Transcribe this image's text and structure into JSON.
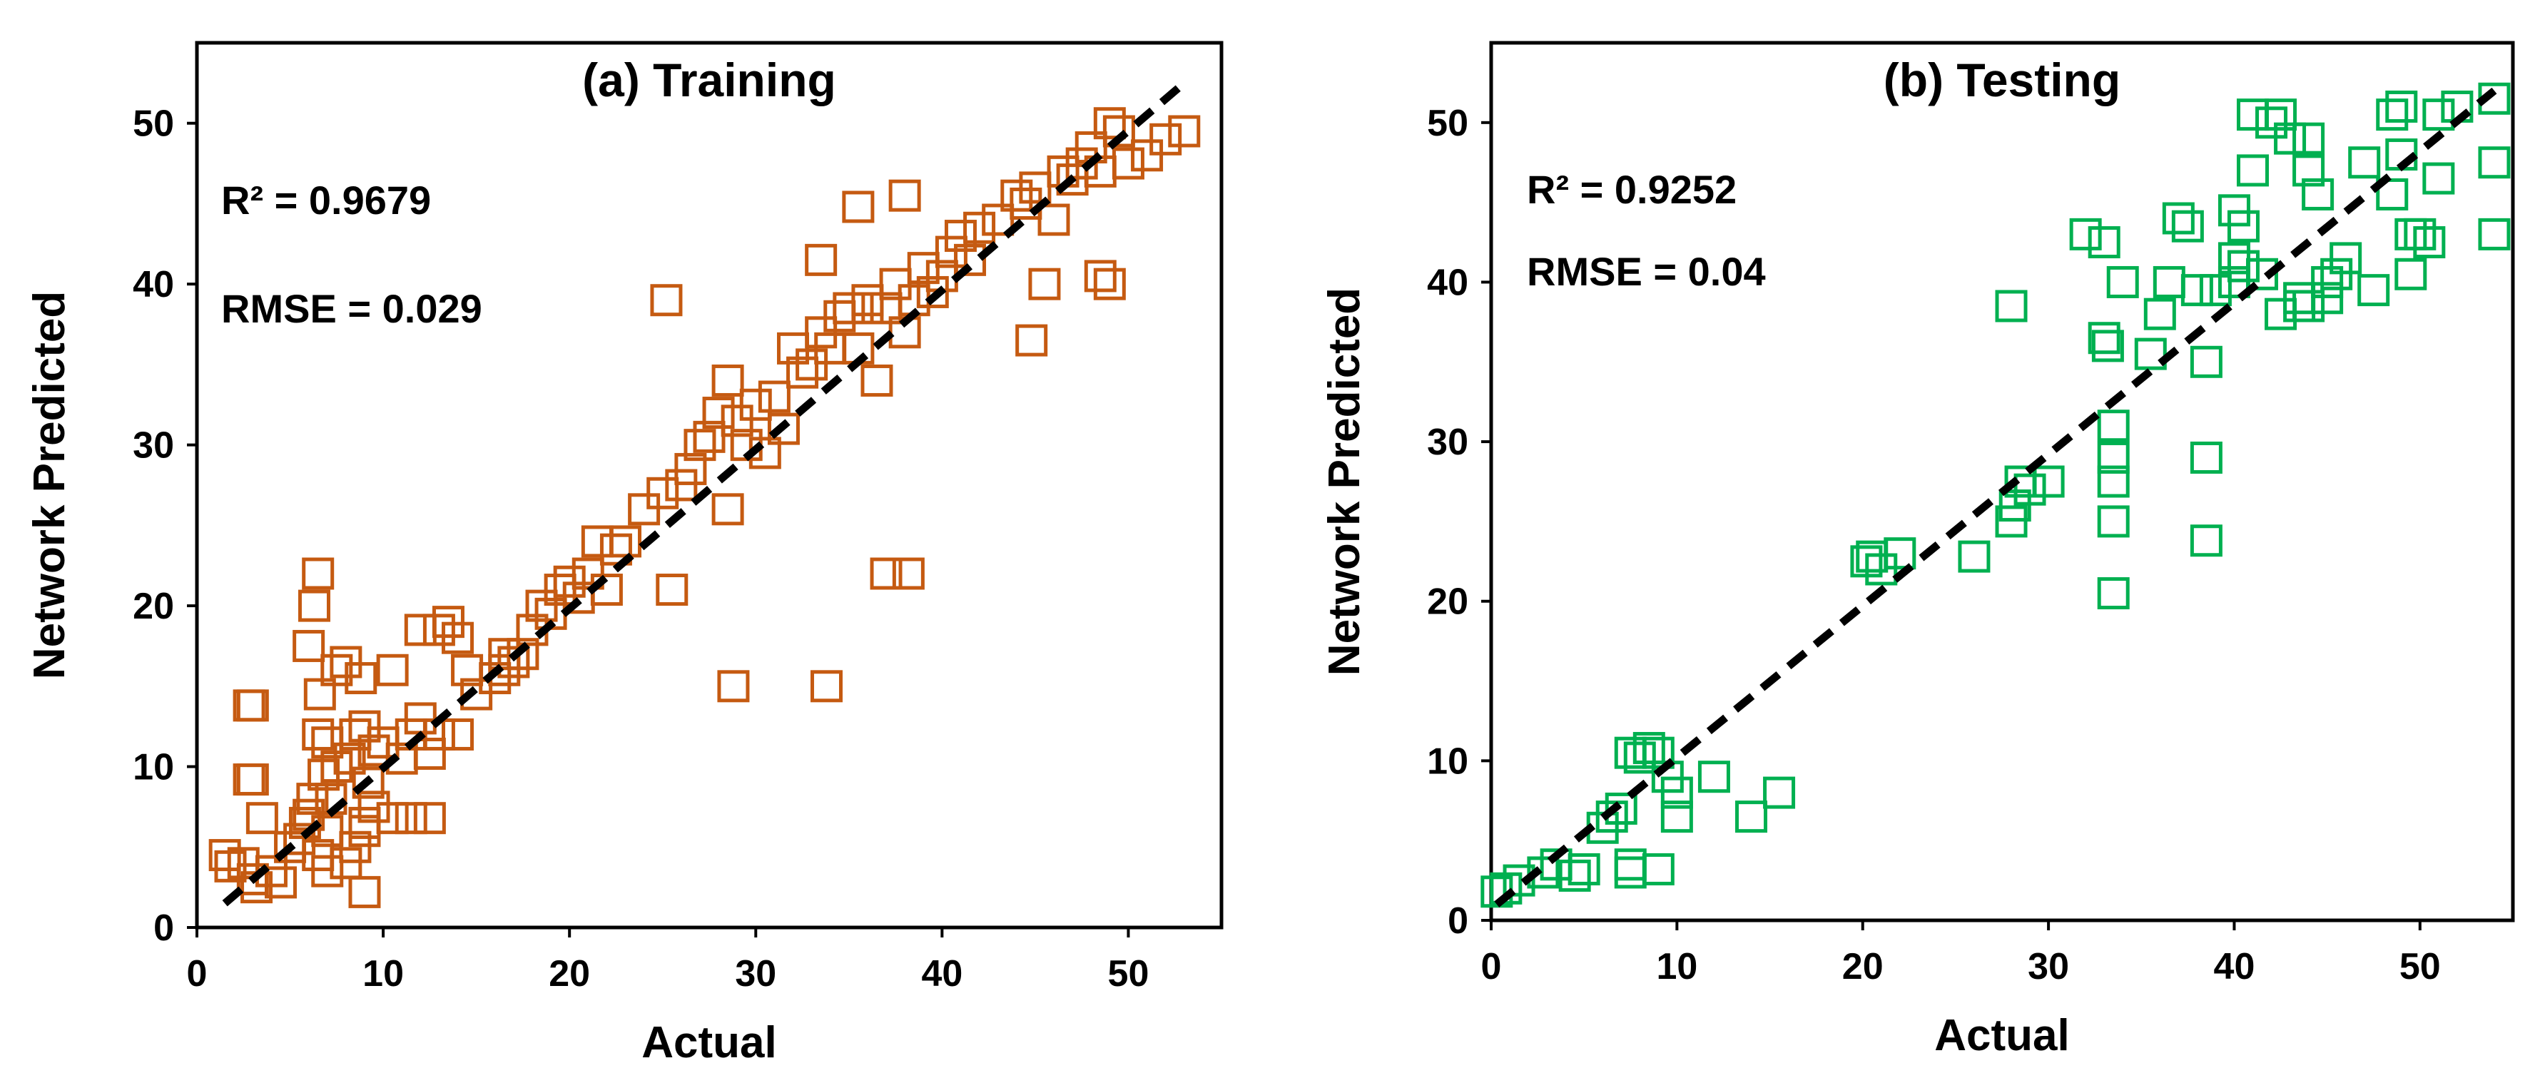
{
  "chart_data": [
    {
      "type": "scatter",
      "title": "(a) Training",
      "xlabel": "Actual",
      "ylabel": "Network Predicted",
      "xlim": [
        0,
        55
      ],
      "ylim": [
        0,
        55
      ],
      "xticks": [
        0,
        10,
        20,
        30,
        40,
        50
      ],
      "yticks": [
        0,
        10,
        20,
        30,
        40,
        50
      ],
      "annotations": [
        "R² = 0.9679",
        "RMSE = 0.029"
      ],
      "marker": "hollow-square",
      "color": "#c55a11",
      "fit_line": {
        "style": "dashed",
        "color": "#000000",
        "x": [
          1.5,
          53
        ],
        "y": [
          1.5,
          52.5
        ]
      },
      "series": [
        {
          "name": "Training",
          "x": [
            1.5,
            1.8,
            2.5,
            2.8,
            3.0,
            3.0,
            3.2,
            3.5,
            4.0,
            4.5,
            5.0,
            5.5,
            5.8,
            6.0,
            6.2,
            6.5,
            6.5,
            6.8,
            7.0,
            7.0,
            7.2,
            7.5,
            8.0,
            8.0,
            8.5,
            8.8,
            9.0,
            9.0,
            9.2,
            9.5,
            6.0,
            6.3,
            6.6,
            7.5,
            8.2,
            9.0,
            9.5,
            10.0,
            10.5,
            11.0,
            11.5,
            12.0,
            12.5,
            13.0,
            13.5,
            14.0,
            14.5,
            15.0,
            16.0,
            16.5,
            17.0,
            17.5,
            18.0,
            18.5,
            19.0,
            19.5,
            20.0,
            20.5,
            21.0,
            21.5,
            22.0,
            22.5,
            23.0,
            24.0,
            25.0,
            25.5,
            26.0,
            26.5,
            27.0,
            27.5,
            28.0,
            28.5,
            29.0,
            29.5,
            30.0,
            30.5,
            31.0,
            32.0,
            32.5,
            33.0,
            33.5,
            34.0,
            34.5,
            35.0,
            35.5,
            36.0,
            36.5,
            37.0,
            37.5,
            38.0,
            38.5,
            39.0,
            39.5,
            40.0,
            40.5,
            41.0,
            41.5,
            42.0,
            43.0,
            44.0,
            44.5,
            45.0,
            45.5,
            46.0,
            46.5,
            47.0,
            47.5,
            48.0,
            48.5,
            49.0,
            49.5,
            50.0,
            51.0,
            52.0,
            53.0,
            25.2,
            28.8,
            33.8,
            37.0,
            38.2,
            13.0,
            35.5,
            38.0,
            33.5,
            44.8,
            48.5,
            49.0,
            6.5,
            7.0,
            8.5,
            9.0,
            10.5,
            11.5,
            12.5,
            3.0,
            2.8,
            12.0,
            14.0,
            16.5,
            28.5,
            31.5,
            36.0
          ],
          "y": [
            4.5,
            3.8,
            4.0,
            13.8,
            9.2,
            3.0,
            2.5,
            6.8,
            3.5,
            2.8,
            5.0,
            5.5,
            6.5,
            7.0,
            8.0,
            12.0,
            22.0,
            9.5,
            11.5,
            6.0,
            8.0,
            16.0,
            4.0,
            16.5,
            12.0,
            15.5,
            2.2,
            6.5,
            9.0,
            11.0,
            17.5,
            20.0,
            14.5,
            10.0,
            10.5,
            12.5,
            7.5,
            11.5,
            16.0,
            10.5,
            12.0,
            13.0,
            10.8,
            12.0,
            19.0,
            12.0,
            16.0,
            14.5,
            15.5,
            17.0,
            16.5,
            17.0,
            18.5,
            20.0,
            19.5,
            21.0,
            21.5,
            20.5,
            22.0,
            24.0,
            21.0,
            23.5,
            24.0,
            26.0,
            27.0,
            21.0,
            27.5,
            28.5,
            30.0,
            30.5,
            32.0,
            26.0,
            31.5,
            30.0,
            32.5,
            29.5,
            33.0,
            36.0,
            34.5,
            35.0,
            37.0,
            36.0,
            38.0,
            38.5,
            36.0,
            39.0,
            34.0,
            38.5,
            40.0,
            37.0,
            39.0,
            41.0,
            39.5,
            40.5,
            42.0,
            43.0,
            41.5,
            43.5,
            44.0,
            45.5,
            45.0,
            46.0,
            40.0,
            44.0,
            47.0,
            46.5,
            47.5,
            48.5,
            47.0,
            50.0,
            49.5,
            47.5,
            48.0,
            49.0,
            49.5,
            39.0,
            15.0,
            15.0,
            22.0,
            22.0,
            18.5,
            44.8,
            45.5,
            41.5,
            36.5,
            40.5,
            40.0,
            4.5,
            3.5,
            5.0,
            6.0,
            6.8,
            6.8,
            6.8,
            13.8,
            9.2,
            18.5,
            18.0,
            16.0,
            34.0,
            31.0,
            38.5
          ]
        }
      ]
    },
    {
      "type": "scatter",
      "title": "(b) Testing",
      "xlabel": "Actual",
      "ylabel": "Network Predicted",
      "xlim": [
        0,
        55
      ],
      "ylim": [
        0,
        55
      ],
      "xticks": [
        0,
        10,
        20,
        30,
        40,
        50
      ],
      "yticks": [
        0,
        10,
        20,
        30,
        40,
        50
      ],
      "annotations": [
        "R² = 0.9252",
        "RMSE = 0.04"
      ],
      "marker": "hollow-square",
      "color": "#00b050",
      "fit_line": {
        "style": "dashed",
        "color": "#000000",
        "x": [
          0.3,
          54
        ],
        "y": [
          1.0,
          52
        ]
      },
      "series": [
        {
          "name": "Testing",
          "x": [
            0.3,
            0.8,
            1.5,
            2.8,
            3.5,
            4.5,
            5.0,
            6.0,
            6.5,
            7.0,
            7.5,
            7.5,
            8.0,
            8.5,
            9.0,
            9.5,
            10.0,
            7.5,
            9.0,
            10.0,
            12.0,
            14.0,
            15.5,
            20.2,
            20.5,
            21.0,
            22.0,
            26.0,
            28.0,
            28.2,
            28.5,
            29.0,
            30.0,
            32.0,
            33.0,
            33.2,
            33.5,
            33.5,
            33.5,
            33.5,
            33.5,
            34.0,
            35.5,
            36.0,
            36.5,
            37.0,
            37.5,
            38.0,
            38.5,
            38.5,
            38.5,
            39.0,
            40.0,
            40.0,
            40.5,
            41.0,
            41.0,
            41.5,
            42.0,
            42.5,
            43.0,
            43.5,
            44.0,
            44.0,
            44.5,
            45.0,
            45.5,
            46.0,
            47.5,
            48.5,
            48.5,
            49.0,
            49.0,
            49.5,
            49.5,
            50.0,
            50.5,
            51.0,
            51.0,
            52.0,
            54.0,
            54.0,
            54.0,
            40.0,
            40.5,
            42.5,
            43.5,
            44.0,
            45.0,
            47.0,
            28.0,
            33.0
          ],
          "y": [
            1.8,
            2.0,
            2.5,
            3.0,
            3.5,
            2.8,
            3.2,
            5.8,
            6.5,
            7.0,
            10.5,
            3.0,
            10.2,
            10.8,
            10.5,
            9.0,
            8.0,
            3.5,
            3.2,
            6.5,
            9.0,
            6.5,
            8.0,
            22.5,
            22.8,
            22.0,
            23.0,
            22.8,
            25.0,
            26.0,
            27.5,
            27.0,
            27.5,
            43.0,
            42.5,
            36.0,
            20.5,
            25.0,
            27.5,
            29.0,
            31.0,
            40.0,
            35.5,
            38.0,
            40.0,
            44.0,
            43.5,
            39.5,
            35.0,
            29.0,
            23.8,
            39.5,
            40.0,
            41.5,
            43.5,
            47.0,
            50.5,
            40.5,
            50.0,
            50.5,
            49.0,
            39.0,
            38.5,
            47.0,
            45.5,
            40.0,
            40.5,
            41.5,
            39.5,
            45.5,
            50.5,
            51.0,
            48.0,
            43.0,
            40.5,
            43.0,
            42.5,
            50.5,
            46.5,
            51.0,
            47.5,
            43.0,
            51.5,
            44.5,
            41.0,
            38.0,
            38.5,
            49.0,
            39.0,
            47.5,
            38.5,
            36.5
          ]
        }
      ]
    }
  ]
}
